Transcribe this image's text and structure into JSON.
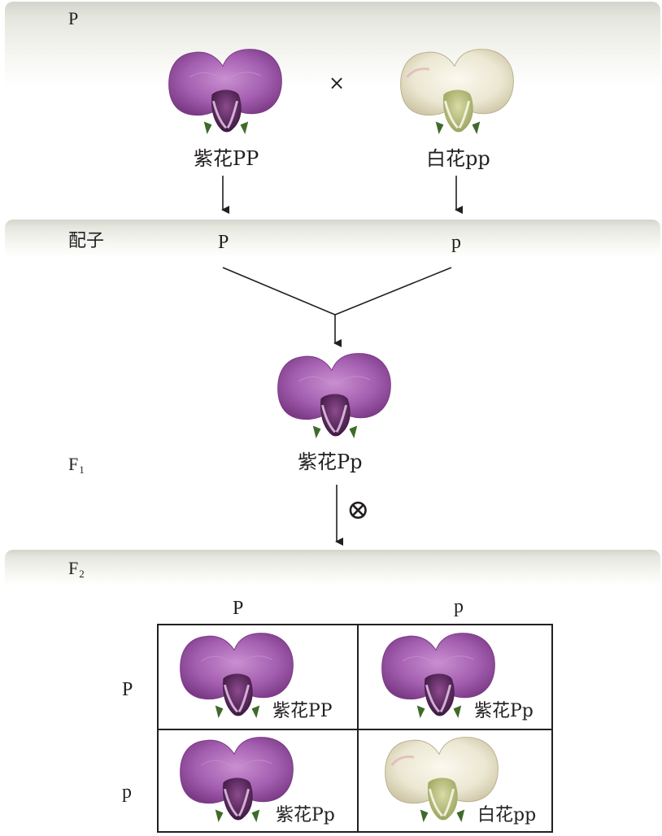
{
  "rows": {
    "p_label": "P",
    "gamete_label": "配子",
    "f1_label": "F",
    "f1_sub": "1",
    "f2_label": "F",
    "f2_sub": "2"
  },
  "parents": {
    "cross_symbol": "×",
    "purple_label": "紫花PP",
    "white_label": "白花pp"
  },
  "gametes": {
    "left": "P",
    "right": "p"
  },
  "f1": {
    "label": "紫花Pp",
    "selfing_symbol": "⊗"
  },
  "punnett": {
    "col_headers": [
      "P",
      "p"
    ],
    "row_headers": [
      "P",
      "p"
    ],
    "cells": [
      {
        "label": "紫花PP",
        "color": "purple"
      },
      {
        "label": "紫花Pp",
        "color": "purple"
      },
      {
        "label": "紫花Pp",
        "color": "purple"
      },
      {
        "label": "白花pp",
        "color": "white"
      }
    ]
  },
  "colors": {
    "purple": "#a45fb0",
    "white": "#eee8d2",
    "line": "#231f20"
  }
}
